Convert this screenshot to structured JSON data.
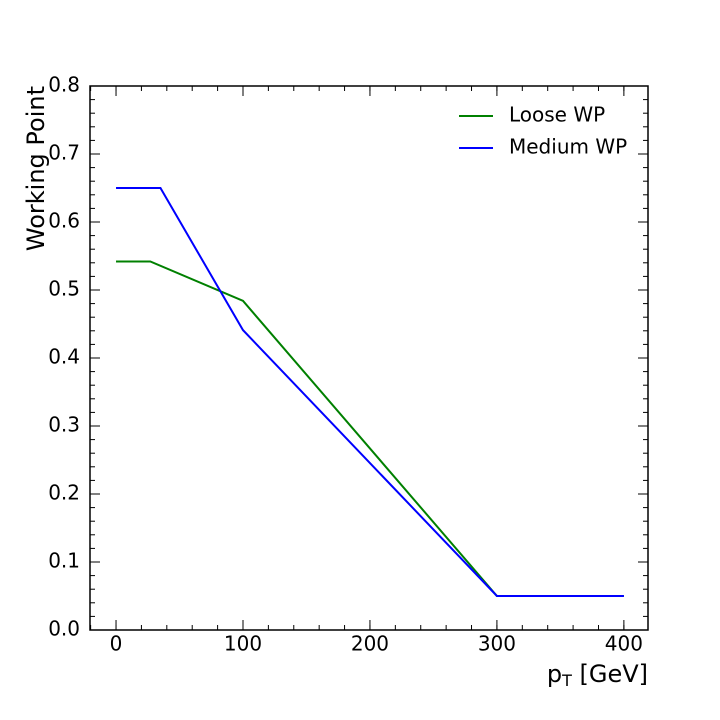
{
  "chart_data": {
    "type": "line",
    "x_label": [
      "p",
      "T",
      " [GeV]"
    ],
    "y_label": "Working Point",
    "series": [
      {
        "name": "Loose WP",
        "color": "#008000",
        "x": [
          0,
          27,
          100,
          300,
          400
        ],
        "values": [
          0.542,
          0.542,
          0.484,
          0.05,
          0.05
        ]
      },
      {
        "name": "Medium WP",
        "color": "#0000ff",
        "x": [
          0,
          35,
          100,
          300,
          400
        ],
        "values": [
          0.65,
          0.65,
          0.441,
          0.05,
          0.05
        ]
      }
    ],
    "xlim": [
      -20.5,
      419
    ],
    "ylim": [
      0,
      0.8
    ],
    "xticks": [
      0,
      100,
      200,
      300,
      400
    ],
    "yticks": [
      {
        "value": 0,
        "label": "0.0"
      },
      0.1,
      0.2,
      0.3,
      0.4,
      0.5,
      0.6,
      0.7,
      {
        "value": 0.8,
        "label": "0.8"
      }
    ],
    "legend": "upper right"
  }
}
